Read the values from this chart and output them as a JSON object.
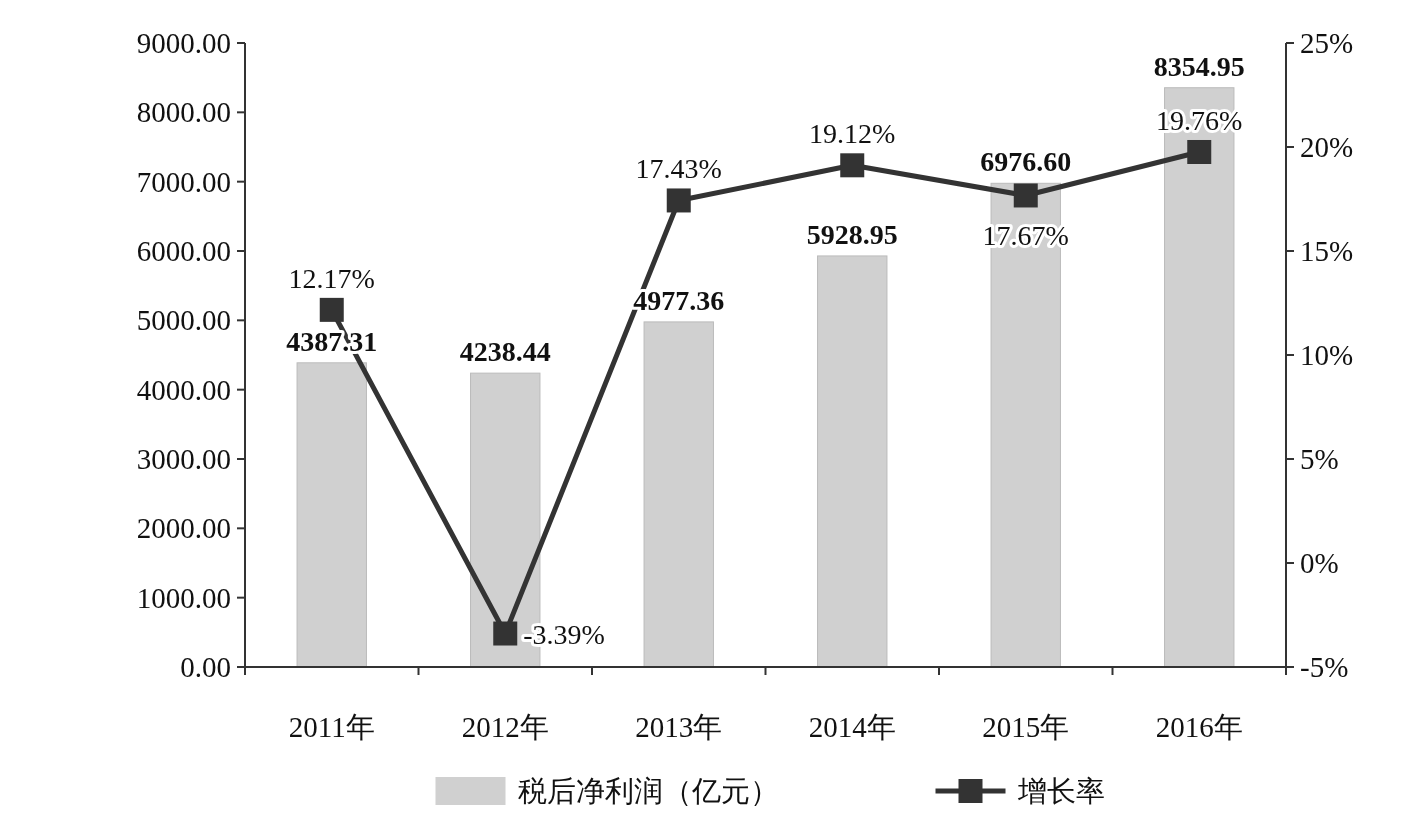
{
  "chart_data": {
    "type": "bar",
    "categories": [
      "2011年",
      "2012年",
      "2013年",
      "2014年",
      "2015年",
      "2016年"
    ],
    "series": [
      {
        "name": "税后净利润（亿元）",
        "color": "#d0d0d0",
        "values": [
          4387.31,
          4238.44,
          4977.36,
          5928.95,
          6976.6,
          8354.95
        ],
        "value_labels": [
          "4387.31",
          "4238.44",
          "4977.36",
          "5928.95",
          "6976.60",
          "8354.95"
        ]
      },
      {
        "name": "增长率",
        "type": "line",
        "axis": "y2",
        "color": "#333333",
        "marker": "square",
        "values": [
          12.17,
          -3.39,
          17.43,
          19.12,
          17.67,
          19.76
        ],
        "value_labels": [
          "12.17%",
          "-3.39%",
          "17.43%",
          "19.12%",
          "17.67%",
          "19.76%"
        ]
      }
    ],
    "ylim": [
      0,
      9000
    ],
    "yticks": [
      {
        "value": 0,
        "label": "0.00"
      },
      {
        "value": 1000,
        "label": "1000.00"
      },
      {
        "value": 2000,
        "label": "2000.00"
      },
      {
        "value": 3000,
        "label": "3000.00"
      },
      {
        "value": 4000,
        "label": "4000.00"
      },
      {
        "value": 5000,
        "label": "5000.00"
      },
      {
        "value": 6000,
        "label": "6000.00"
      },
      {
        "value": 7000,
        "label": "7000.00"
      },
      {
        "value": 8000,
        "label": "8000.00"
      },
      {
        "value": 9000,
        "label": "9000.00"
      }
    ],
    "y2lim": [
      -5,
      25
    ],
    "y2ticks": [
      {
        "value": -5,
        "label": "-5%"
      },
      {
        "value": 0,
        "label": "0%"
      },
      {
        "value": 5,
        "label": "5%"
      },
      {
        "value": 10,
        "label": "10%"
      },
      {
        "value": 15,
        "label": "15%"
      },
      {
        "value": 20,
        "label": "20%"
      },
      {
        "value": 25,
        "label": "25%"
      }
    ],
    "grid": false,
    "legend": "bottom"
  }
}
